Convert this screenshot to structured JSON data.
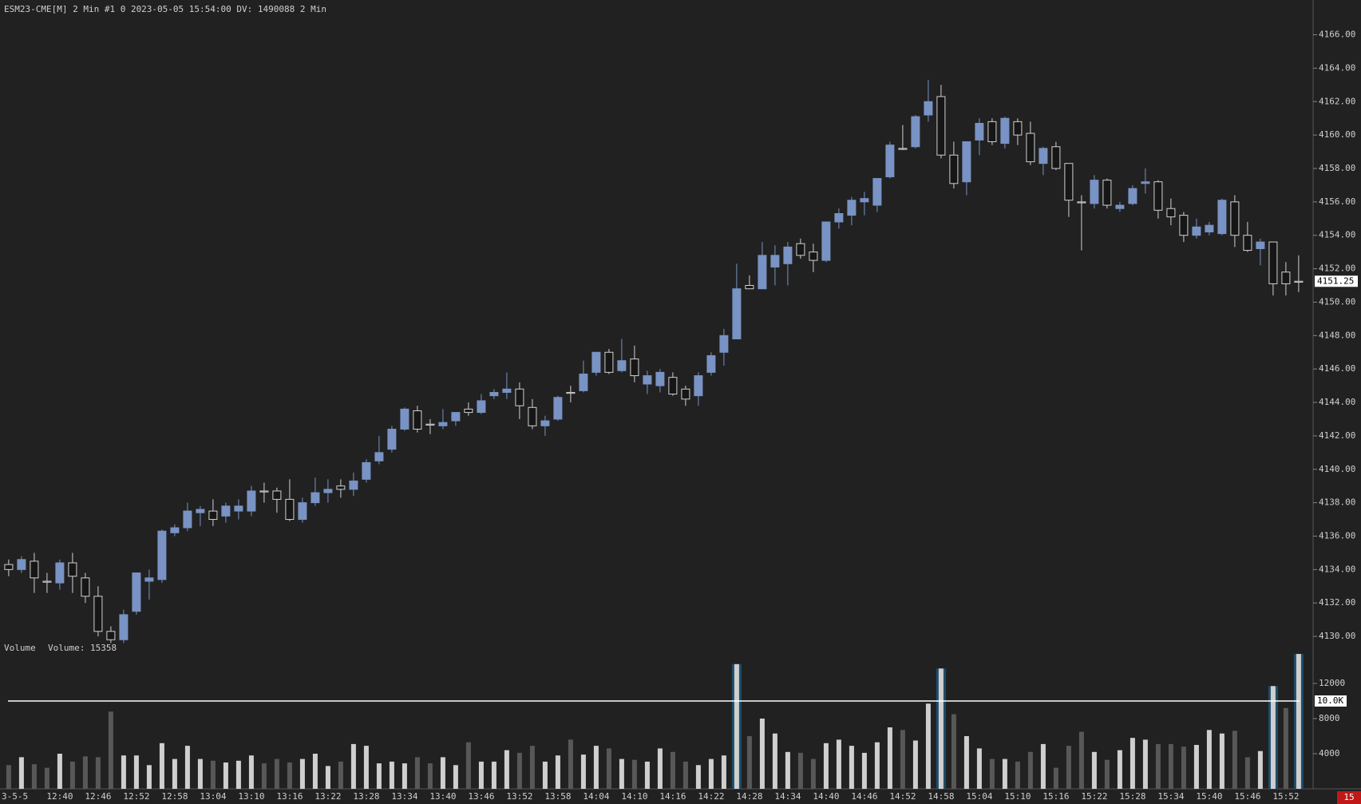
{
  "chart_data": [
    {
      "type": "candlestick",
      "title": "ESM23-CME[M]  2 Min   #1 0 2023-05-05 15:54:00 DV: 1490088 2 Min",
      "categories": [
        "3-5-5",
        null,
        null,
        null,
        "12:40",
        null,
        null,
        "12:46",
        null,
        null,
        "12:52",
        null,
        null,
        "12:58",
        null,
        null,
        "13:04",
        null,
        null,
        "13:10",
        null,
        null,
        "13:16",
        null,
        null,
        "13:22",
        null,
        null,
        "13:28",
        null,
        null,
        "13:34",
        null,
        null,
        "13:40",
        null,
        null,
        "13:46",
        null,
        null,
        "13:52",
        null,
        null,
        "13:58",
        null,
        null,
        "14:04",
        null,
        null,
        "14:10",
        null,
        null,
        "14:16",
        null,
        null,
        "14:22",
        null,
        null,
        "14:28",
        null,
        null,
        "14:34",
        null,
        null,
        "14:40",
        null,
        null,
        "14:46",
        null,
        null,
        "14:52",
        null,
        null,
        "14:58",
        null,
        null,
        "15:04",
        null,
        null,
        "15:10",
        null,
        null,
        "15:16",
        null,
        null,
        "15:22",
        null,
        null,
        "15:28",
        null,
        null,
        "15:34",
        null,
        null,
        "15:40",
        null,
        null,
        "15:46",
        null,
        null,
        "15:52",
        null
      ],
      "open": [
        4134.3,
        4134,
        4134.5,
        4133.3,
        4133.2,
        4134.4,
        4133.5,
        4132.4,
        4130.3,
        4129.8,
        4131.5,
        4133.3,
        4133.4,
        4136.2,
        4136.5,
        4137.4,
        4137.5,
        4137.2,
        4137.5,
        4137.5,
        4138.7,
        4138.7,
        4138.2,
        4137,
        4138,
        4138.6,
        4139,
        4138.8,
        4139.4,
        4140.5,
        4141.2,
        4142.4,
        4143.5,
        4142.7,
        4142.6,
        4142.9,
        4143.6,
        4143.4,
        4144.4,
        4144.6,
        4144.8,
        4143.7,
        4142.6,
        4143,
        4144.6,
        4144.7,
        4145.8,
        4147,
        4145.9,
        4146.6,
        4145.1,
        4145,
        4145.5,
        4144.8,
        4144.4,
        4145.8,
        4147,
        4147.8,
        4151,
        4150.8,
        4152.1,
        4152.3,
        4153.5,
        4153,
        4152.5,
        4154.8,
        4155.2,
        4156,
        4155.8,
        4157.5,
        4159.2,
        4159.3,
        4161.2,
        4162.3,
        4158.8,
        4157.2,
        4159.7,
        4160.8,
        4159.5,
        4160.8,
        4160.1,
        4158.3,
        4159.3,
        4158.3,
        4156,
        4155.9,
        4157.3,
        4155.6,
        4155.9,
        4157.1,
        4157.2,
        4155.6,
        4155.2,
        4154,
        4154.2,
        4154.1,
        4156,
        4154,
        4153.2,
        4153.6,
        4151.8,
        4151.25
      ],
      "high": [
        4134.6,
        4134.8,
        4135,
        4133.8,
        4134.6,
        4135,
        4133.8,
        4133,
        4130.6,
        4131.6,
        4133.8,
        4134,
        4136.4,
        4136.7,
        4138,
        4137.8,
        4138.2,
        4138,
        4138.2,
        4139,
        4139.2,
        4138.9,
        4139.4,
        4138.3,
        4139.5,
        4139.4,
        4139.4,
        4139.8,
        4140.6,
        4142,
        4142.6,
        4143.7,
        4143.8,
        4143,
        4143.6,
        4143.4,
        4144,
        4144.5,
        4144.8,
        4145.8,
        4145.2,
        4144.2,
        4143.2,
        4144.4,
        4145,
        4146.5,
        4147,
        4147.2,
        4147.8,
        4147.4,
        4145.9,
        4146,
        4145.8,
        4145,
        4145.8,
        4147,
        4148.4,
        4152.3,
        4151.6,
        4153.6,
        4153.4,
        4153.6,
        4153.8,
        4153.5,
        4154.8,
        4155.6,
        4156.3,
        4156.6,
        4157.4,
        4159.6,
        4160.6,
        4161.2,
        4163.3,
        4163,
        4159.6,
        4159.6,
        4161,
        4161,
        4161.1,
        4161,
        4160.8,
        4159.3,
        4159.6,
        4158.3,
        4156.4,
        4157.6,
        4157.4,
        4156,
        4157,
        4158,
        4157.3,
        4156.2,
        4155.4,
        4155,
        4154.8,
        4156.2,
        4156.4,
        4154.8,
        4153.8,
        4153.6,
        4152.4,
        4152.8
      ],
      "low": [
        4133.6,
        4133.8,
        4132.6,
        4132.6,
        4132.8,
        4132.6,
        4132,
        4130,
        4129.6,
        4129.6,
        4131.3,
        4132.2,
        4133.2,
        4136,
        4136.3,
        4136.6,
        4136.6,
        4136.8,
        4137,
        4137.2,
        4138,
        4137.4,
        4136.9,
        4136.8,
        4137.8,
        4138,
        4138.3,
        4138.4,
        4139.2,
        4140.3,
        4141,
        4142.3,
        4142.2,
        4142.1,
        4142.4,
        4142.6,
        4143.2,
        4143.3,
        4144.2,
        4144.2,
        4143,
        4142.4,
        4142,
        4142.9,
        4144,
        4144.6,
        4145.6,
        4145.7,
        4145.8,
        4145.2,
        4144.5,
        4144.6,
        4144.4,
        4143.8,
        4143.8,
        4145.6,
        4146.2,
        4147.8,
        4150.8,
        4150.8,
        4151,
        4151,
        4152.6,
        4151.8,
        4152.4,
        4154.4,
        4154.6,
        4155.2,
        4155.4,
        4157.4,
        4159.1,
        4159.2,
        4160.8,
        4158.6,
        4156.8,
        4156.4,
        4158.8,
        4159.4,
        4159.2,
        4159.4,
        4158.2,
        4157.6,
        4157.9,
        4155.1,
        4153.1,
        4155.6,
        4155.6,
        4155.4,
        4155.8,
        4156.5,
        4155,
        4154.6,
        4153.6,
        4153.8,
        4154,
        4154,
        4153.3,
        4153,
        4152.2,
        4150.4,
        4150.4,
        4150.6
      ],
      "close": [
        4134,
        4134.6,
        4133.5,
        4133.3,
        4134.4,
        4133.6,
        4132.4,
        4130.3,
        4129.8,
        4131.3,
        4133.8,
        4133.5,
        4136.3,
        4136.5,
        4137.5,
        4137.6,
        4137,
        4137.8,
        4137.8,
        4138.7,
        4138.7,
        4138.2,
        4137,
        4138,
        4138.6,
        4138.8,
        4138.8,
        4139.3,
        4140.4,
        4141,
        4142.4,
        4143.6,
        4142.4,
        4142.7,
        4142.8,
        4143.4,
        4143.4,
        4144.1,
        4144.6,
        4144.8,
        4143.8,
        4142.6,
        4142.9,
        4144.3,
        4144.6,
        4145.7,
        4147,
        4145.8,
        4146.5,
        4145.6,
        4145.6,
        4145.8,
        4144.5,
        4144.2,
        4145.6,
        4146.8,
        4148,
        4150.8,
        4150.8,
        4152.8,
        4152.8,
        4153.3,
        4152.8,
        4152.5,
        4154.8,
        4155.3,
        4156.1,
        4156.2,
        4157.4,
        4159.4,
        4159.2,
        4161.1,
        4162,
        4158.8,
        4157.1,
        4159.6,
        4160.7,
        4159.6,
        4161,
        4160,
        4158.4,
        4159.2,
        4158,
        4156.1,
        4156,
        4157.3,
        4155.8,
        4155.8,
        4156.8,
        4157.2,
        4155.5,
        4155.1,
        4154,
        4154.5,
        4154.6,
        4156.1,
        4154,
        4153.1,
        4153.6,
        4151.1,
        4151.1,
        4151.25
      ],
      "up_color": "#7893c4",
      "down_color": "#d0d0d0",
      "ylim": [
        4129,
        4167
      ],
      "yticks": [
        {
          "value": 4130,
          "label": "4130.00"
        },
        {
          "value": 4132,
          "label": "4132.00"
        },
        {
          "value": 4134,
          "label": "4134.00"
        },
        {
          "value": 4136,
          "label": "4136.00"
        },
        {
          "value": 4138,
          "label": "4138.00"
        },
        {
          "value": 4140,
          "label": "4140.00"
        },
        {
          "value": 4142,
          "label": "4142.00"
        },
        {
          "value": 4144,
          "label": "4144.00"
        },
        {
          "value": 4146,
          "label": "4146.00"
        },
        {
          "value": 4148,
          "label": "4148.00"
        },
        {
          "value": 4150,
          "label": "4150.00"
        },
        {
          "value": 4152,
          "label": "4152.00"
        },
        {
          "value": 4154,
          "label": "4154.00"
        },
        {
          "value": 4156,
          "label": "4156.00"
        },
        {
          "value": 4158,
          "label": "4158.00"
        },
        {
          "value": 4160,
          "label": "4160.00"
        },
        {
          "value": 4162,
          "label": "4162.00"
        },
        {
          "value": 4164,
          "label": "4164.00"
        },
        {
          "value": 4166,
          "label": "4166.00"
        }
      ],
      "last_price": 4151.25,
      "countdown": "15"
    },
    {
      "type": "bar",
      "title": "Volume",
      "subtitle": "Volume: 15358",
      "values": [
        2700,
        3600,
        2800,
        2400,
        4000,
        3100,
        3700,
        3600,
        8800,
        3800,
        3800,
        2700,
        5200,
        3400,
        4900,
        3400,
        3200,
        3000,
        3200,
        3800,
        2900,
        3400,
        3000,
        3400,
        4000,
        2600,
        3100,
        5100,
        4900,
        2900,
        3100,
        2900,
        3600,
        2900,
        3600,
        2700,
        5300,
        3100,
        3100,
        4400,
        4100,
        4900,
        3100,
        3800,
        5600,
        3900,
        4900,
        4600,
        3400,
        3300,
        3100,
        4600,
        4200,
        3100,
        2700,
        3400,
        3800,
        14200,
        6000,
        8000,
        6300,
        4200,
        4100,
        3400,
        5200,
        5600,
        4900,
        4100,
        5300,
        7000,
        6700,
        5500,
        9700,
        13700,
        8500,
        6000,
        4600,
        3400,
        3400,
        3100,
        4200,
        5100,
        2400,
        4900,
        6500,
        4200,
        3300,
        4400,
        5800,
        5600,
        5100,
        5100,
        4800,
        5000,
        6700,
        6300,
        6600,
        3600,
        4300,
        11700,
        9200,
        15358
      ],
      "up_color": "#cfcfcf",
      "down_color": "#585858",
      "highlight_color": "#1f4d6b",
      "ylim": [
        0,
        16000
      ],
      "yticks": [
        4000,
        8000,
        12000
      ],
      "reference_line": {
        "value": 10000,
        "label": "10.0K"
      }
    }
  ]
}
